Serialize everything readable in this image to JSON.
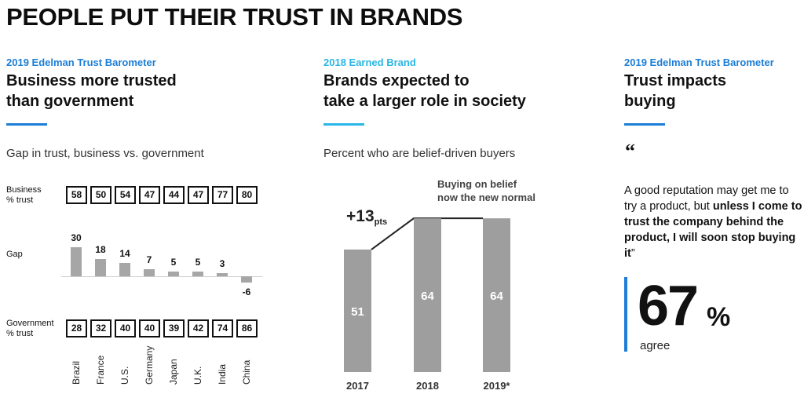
{
  "headline": "PEOPLE PUT THEIR TRUST IN BRANDS",
  "colors": {
    "blue": "#1c7ed6",
    "cyan": "#29b6e6",
    "bar": "#a6a6a6",
    "darkbar": "#9e9e9e"
  },
  "col1": {
    "kicker": "2019 Edelman Trust Barometer",
    "title_line1": "Business more trusted",
    "title_line2": "than government",
    "subtitle": "Gap in trust, business vs. government",
    "business_label_1": "Business",
    "business_label_2": "% trust",
    "gap_label": "Gap",
    "government_label_1": "Government",
    "government_label_2": "% trust"
  },
  "col2": {
    "kicker": "2018 Earned Brand",
    "title_line1": "Brands expected to",
    "title_line2": "take a larger role in society",
    "subtitle": "Percent who are belief-driven buyers",
    "annotation_line1": "Buying on belief",
    "annotation_line2": "now the new normal",
    "increase_value": "+13",
    "increase_unit": "pts"
  },
  "col3": {
    "kicker": "2019 Edelman Trust Barometer",
    "title_line1": "Trust impacts",
    "title_line2": "buying",
    "quote_mark": "“",
    "quote_plain": "A good reputation may get me to try a product, but ",
    "quote_bold": "unless I come to trust the company behind the product, I will soon stop buying it",
    "quote_end": "”",
    "stat_value": "67",
    "stat_unit": "%",
    "stat_label": "agree"
  },
  "chart_data": [
    {
      "type": "bar",
      "title": "Gap in trust, business vs. government",
      "categories": [
        "Brazil",
        "France",
        "U.S.",
        "Germany",
        "Japan",
        "U.K.",
        "India",
        "China"
      ],
      "series": [
        {
          "name": "Business % trust",
          "values": [
            58,
            50,
            54,
            47,
            44,
            47,
            77,
            80
          ]
        },
        {
          "name": "Gap",
          "values": [
            30,
            18,
            14,
            7,
            5,
            5,
            3,
            -6
          ]
        },
        {
          "name": "Government % trust",
          "values": [
            28,
            32,
            40,
            40,
            39,
            42,
            74,
            86
          ]
        }
      ]
    },
    {
      "type": "bar",
      "title": "Percent who are belief-driven buyers",
      "categories": [
        "2017",
        "2018",
        "2019*"
      ],
      "values": [
        51,
        64,
        64
      ],
      "value_labels": [
        "51",
        "64",
        "64"
      ]
    }
  ]
}
